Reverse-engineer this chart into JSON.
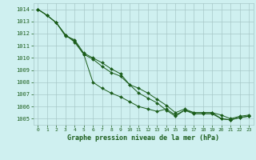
{
  "title": "Graphe pression niveau de la mer (hPa)",
  "background_color": "#cff0f0",
  "grid_color": "#a8c8c8",
  "line_color": "#1a5c1a",
  "xlim": [
    -0.5,
    23.5
  ],
  "ylim": [
    1004.5,
    1014.5
  ],
  "yticks": [
    1005,
    1006,
    1007,
    1008,
    1009,
    1010,
    1011,
    1012,
    1013,
    1014
  ],
  "xticks": [
    0,
    1,
    2,
    3,
    4,
    5,
    6,
    7,
    8,
    9,
    10,
    11,
    12,
    13,
    14,
    15,
    16,
    17,
    18,
    19,
    20,
    21,
    22,
    23
  ],
  "series1": [
    1014.0,
    1013.5,
    1012.9,
    1011.9,
    1011.4,
    1010.3,
    1009.9,
    1009.3,
    1008.8,
    1008.5,
    1007.8,
    1007.1,
    1006.7,
    1006.3,
    1005.7,
    1005.2,
    1005.7,
    1005.4,
    1005.4,
    1005.4,
    1005.0,
    1004.9,
    1005.1,
    1005.2
  ],
  "series2": [
    1014.0,
    1013.5,
    1012.9,
    1011.8,
    1011.5,
    1010.4,
    1010.0,
    1009.6,
    1009.1,
    1008.7,
    1007.8,
    1007.5,
    1007.1,
    1006.6,
    1006.1,
    1005.5,
    1005.8,
    1005.5,
    1005.5,
    1005.5,
    1005.3,
    1005.0,
    1005.2,
    1005.3
  ],
  "series3": [
    1014.0,
    1013.5,
    1012.9,
    1011.9,
    1011.3,
    1010.3,
    1008.0,
    1007.5,
    1007.1,
    1006.8,
    1006.4,
    1006.0,
    1005.8,
    1005.6,
    1005.8,
    1005.3,
    1005.7,
    1005.5,
    1005.5,
    1005.5,
    1005.0,
    1004.9,
    1005.1,
    1005.2
  ]
}
